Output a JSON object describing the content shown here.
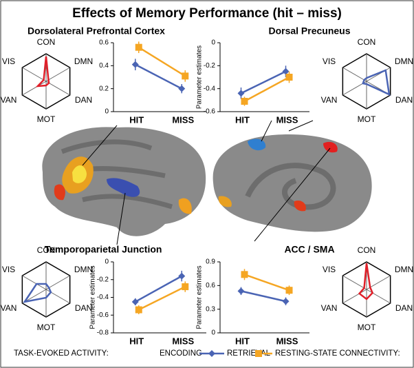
{
  "title": "Effects of Memory Performance (hit – miss)",
  "legend": {
    "task_label": "TASK-EVOKED ACTIVITY:",
    "rest_label": "RESTING-STATE CONNECTIVITY:"
  },
  "chart_data": [
    {
      "type": "line",
      "title": "Dorsolateral Prefrontal Cortex",
      "categories": [
        "HIT",
        "MISS"
      ],
      "ylim": [
        0,
        0.6
      ],
      "yticks": [
        0,
        0.2,
        0.4,
        0.6
      ],
      "series": [
        {
          "name": "ENCODING",
          "color": "#4a64b4",
          "values": [
            0.41,
            0.2
          ],
          "errors": [
            0.05,
            0.04
          ]
        },
        {
          "name": "RETRIEVAL",
          "color": "#f5a623",
          "values": [
            0.56,
            0.31
          ],
          "errors": [
            0.05,
            0.05
          ]
        }
      ]
    },
    {
      "type": "line",
      "title": "Dorsal Precuneus",
      "categories": [
        "HIT",
        "MISS"
      ],
      "ylabel": "Parameter estimates",
      "ylim": [
        -0.6,
        0
      ],
      "yticks": [
        -0.6,
        -0.4,
        -0.2,
        0
      ],
      "series": [
        {
          "name": "ENCODING",
          "color": "#4a64b4",
          "values": [
            -0.44,
            -0.25
          ],
          "errors": [
            0.05,
            0.05
          ]
        },
        {
          "name": "RETRIEVAL",
          "color": "#f5a623",
          "values": [
            -0.51,
            -0.3
          ],
          "errors": [
            0.04,
            0.05
          ]
        }
      ]
    },
    {
      "type": "line",
      "title": "Temporoparietal Junction",
      "categories": [
        "HIT",
        "MISS"
      ],
      "ylabel": "Parameter estimates",
      "ylim": [
        -0.8,
        0
      ],
      "yticks": [
        -0.8,
        -0.6,
        -0.4,
        -0.2,
        0
      ],
      "series": [
        {
          "name": "ENCODING",
          "color": "#4a64b4",
          "values": [
            -0.45,
            -0.16
          ],
          "errors": [
            0.04,
            0.06
          ]
        },
        {
          "name": "RETRIEVAL",
          "color": "#f5a623",
          "values": [
            -0.54,
            -0.28
          ],
          "errors": [
            0.05,
            0.06
          ]
        }
      ]
    },
    {
      "type": "line",
      "title": "ACC / SMA",
      "categories": [
        "HIT",
        "MISS"
      ],
      "ylabel": "Parameter estimates",
      "ylim": [
        0,
        0.9
      ],
      "yticks": [
        0,
        0.3,
        0.6,
        0.9
      ],
      "series": [
        {
          "name": "ENCODING",
          "color": "#4a64b4",
          "values": [
            0.53,
            0.4
          ],
          "errors": [
            0.05,
            0.05
          ]
        },
        {
          "name": "RETRIEVAL",
          "color": "#f5a623",
          "values": [
            0.74,
            0.54
          ],
          "errors": [
            0.07,
            0.06
          ]
        }
      ]
    },
    {
      "type": "radar",
      "axes": [
        "CON",
        "DMN",
        "DAN",
        "MOT",
        "VAN",
        "VIS"
      ],
      "rlim": [
        0,
        1
      ],
      "color": "#e0202a",
      "values": [
        0.9,
        0.1,
        0.12,
        0.15,
        0.35,
        0.1
      ]
    },
    {
      "type": "radar",
      "axes": [
        "CON",
        "DMN",
        "DAN",
        "MOT",
        "VAN",
        "VIS"
      ],
      "rlim": [
        0,
        1
      ],
      "color": "#4a64b4",
      "values": [
        0.12,
        0.8,
        0.95,
        0.1,
        0.15,
        0.1
      ]
    },
    {
      "type": "radar",
      "axes": [
        "CON",
        "DMN",
        "DAN",
        "MOT",
        "VAN",
        "VIS"
      ],
      "rlim": [
        0,
        1
      ],
      "color": "#4a64b4",
      "values": [
        0.2,
        0.12,
        0.2,
        0.3,
        0.9,
        0.4
      ]
    },
    {
      "type": "radar",
      "axes": [
        "CON",
        "DMN",
        "DAN",
        "MOT",
        "VAN",
        "VIS"
      ],
      "rlim": [
        0,
        1
      ],
      "color": "#e0202a",
      "values": [
        0.95,
        0.15,
        0.25,
        0.35,
        0.3,
        0.1
      ]
    }
  ]
}
